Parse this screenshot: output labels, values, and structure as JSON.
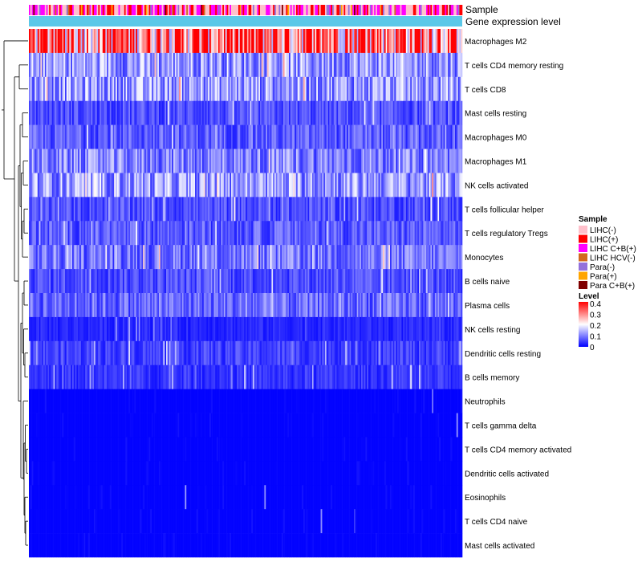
{
  "chart_data": {
    "type": "heatmap",
    "annotation_rows": [
      "Sample",
      "Gene expression level"
    ],
    "rows": [
      "Macrophages M2",
      "T cells CD4 memory resting",
      "T cells CD8",
      "Mast cells resting",
      "Macrophages M0",
      "Macrophages M1",
      "NK cells activated",
      "T cells follicular helper",
      "T cells regulatory  Tregs",
      "Monocytes",
      "B cells naive",
      "Plasma cells",
      "NK cells resting",
      "Dendritic cells resting",
      "B cells memory",
      "Neutrophils",
      "T cells gamma delta",
      "T cells CD4 memory activated",
      "Dendritic cells activated",
      "Eosinophils",
      "T cells CD4 naive",
      "Mast cells activated"
    ],
    "row_mean_levels": [
      0.33,
      0.12,
      0.12,
      0.06,
      0.07,
      0.1,
      0.12,
      0.06,
      0.07,
      0.09,
      0.06,
      0.08,
      0.03,
      0.05,
      0.04,
      0.01,
      0.01,
      0.01,
      0.01,
      0.01,
      0.01,
      0.01
    ],
    "sample_legend": {
      "title": "Sample",
      "items": [
        {
          "label": "LIHC(-)",
          "color": "#ffc0cb"
        },
        {
          "label": "LIHC(+)",
          "color": "#ff0000"
        },
        {
          "label": "LIHC C+B(+)",
          "color": "#ff00ff"
        },
        {
          "label": "LIHC HCV(-)",
          "color": "#d2691e"
        },
        {
          "label": "Para(-)",
          "color": "#9370db"
        },
        {
          "label": "Para(+)",
          "color": "#ffa500"
        },
        {
          "label": "Para C+B(+)",
          "color": "#800000"
        }
      ]
    },
    "level_legend": {
      "title": "Level",
      "ticks": [
        "0.4",
        "0.3",
        "0.2",
        "0.1",
        "0"
      ],
      "range": [
        0,
        0.4
      ],
      "colors": [
        "#0000ff",
        "#ffffff",
        "#ff0000"
      ]
    },
    "expression_bar_color": "#5bc8e8"
  }
}
